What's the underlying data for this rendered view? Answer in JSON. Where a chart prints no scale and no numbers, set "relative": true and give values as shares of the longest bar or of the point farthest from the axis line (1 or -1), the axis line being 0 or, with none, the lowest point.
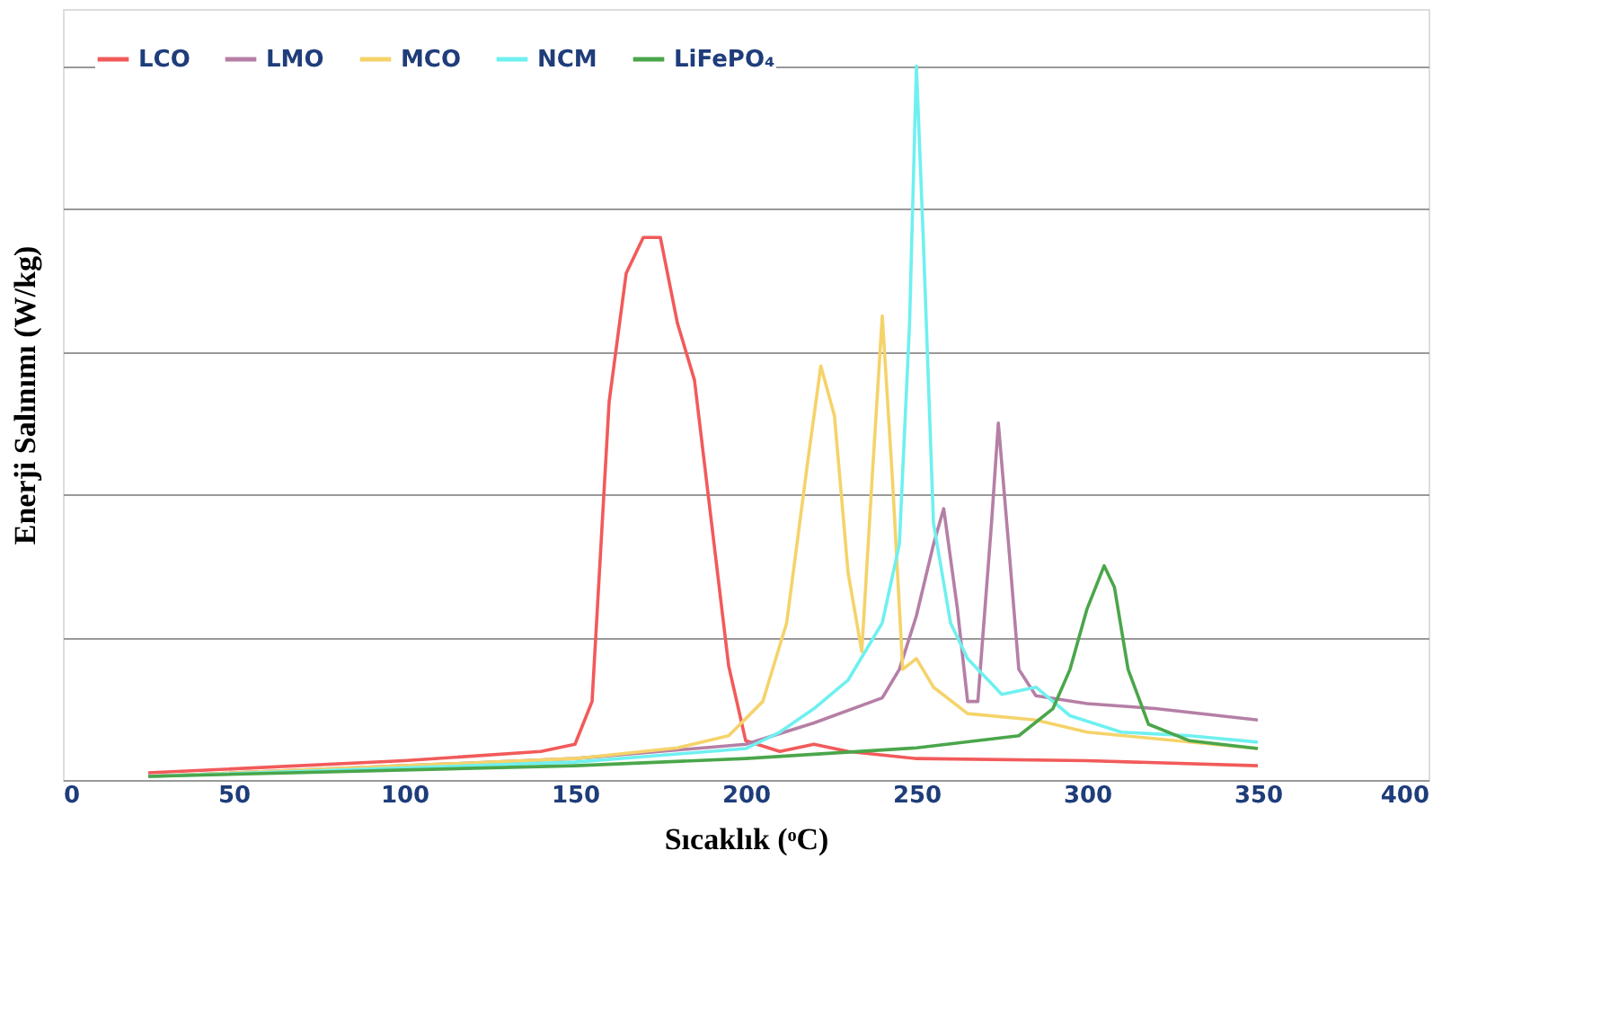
{
  "chart_data": {
    "type": "line",
    "relative": true,
    "xlabel": "Sıcaklık (ᵒC)",
    "ylabel": "Enerji Salınımı (W/kg)",
    "xlim": [
      0,
      400
    ],
    "xticks": [
      0,
      50,
      100,
      150,
      200,
      250,
      300,
      350,
      400
    ],
    "grid": "y",
    "legend": "top left",
    "tick_labels": "x",
    "line_style": "solid",
    "marker": "none",
    "series": [
      {
        "name": "LCO",
        "color": "#f25a5a",
        "x": [
          25,
          100,
          140,
          150,
          155,
          160,
          165,
          170,
          175,
          180,
          185,
          190,
          195,
          200,
          210,
          220,
          230,
          250,
          300,
          350
        ],
        "values": [
          0.01,
          0.027,
          0.04,
          0.05,
          0.11,
          0.53,
          0.71,
          0.76,
          0.76,
          0.64,
          0.56,
          0.36,
          0.16,
          0.055,
          0.04,
          0.05,
          0.04,
          0.03,
          0.027,
          0.02
        ]
      },
      {
        "name": "LMO",
        "color": "#b57fa6",
        "x": [
          25,
          100,
          150,
          200,
          220,
          240,
          245,
          250,
          255,
          258,
          262,
          265,
          268,
          272,
          274,
          277,
          280,
          285,
          300,
          320,
          350
        ],
        "values": [
          0.005,
          0.02,
          0.03,
          0.05,
          0.08,
          0.115,
          0.155,
          0.23,
          0.33,
          0.38,
          0.24,
          0.11,
          0.11,
          0.36,
          0.5,
          0.33,
          0.155,
          0.118,
          0.107,
          0.1,
          0.084
        ]
      },
      {
        "name": "MCO",
        "color": "#f5d36a",
        "x": [
          25,
          150,
          180,
          195,
          205,
          212,
          218,
          222,
          226,
          230,
          234,
          237,
          240,
          243,
          246,
          250,
          255,
          265,
          285,
          300,
          350
        ],
        "values": [
          0.005,
          0.03,
          0.045,
          0.062,
          0.11,
          0.22,
          0.44,
          0.58,
          0.51,
          0.29,
          0.18,
          0.42,
          0.65,
          0.42,
          0.155,
          0.17,
          0.13,
          0.093,
          0.084,
          0.067,
          0.044
        ]
      },
      {
        "name": "NCM",
        "color": "#6ff0f0",
        "x": [
          25,
          150,
          200,
          210,
          220,
          230,
          240,
          245,
          248,
          250,
          252,
          255,
          260,
          265,
          275,
          285,
          295,
          310,
          330,
          350
        ],
        "values": [
          0.005,
          0.025,
          0.044,
          0.067,
          0.1,
          0.14,
          0.22,
          0.33,
          0.64,
          1.0,
          0.76,
          0.36,
          0.22,
          0.17,
          0.12,
          0.13,
          0.09,
          0.067,
          0.062,
          0.053
        ]
      },
      {
        "name": "LiFePO₄",
        "color": "#4aa64a",
        "x": [
          25,
          150,
          200,
          250,
          280,
          290,
          295,
          300,
          305,
          308,
          312,
          318,
          330,
          350
        ],
        "values": [
          0.005,
          0.02,
          0.03,
          0.045,
          0.062,
          0.1,
          0.155,
          0.24,
          0.3,
          0.27,
          0.155,
          0.078,
          0.055,
          0.044
        ]
      }
    ]
  }
}
